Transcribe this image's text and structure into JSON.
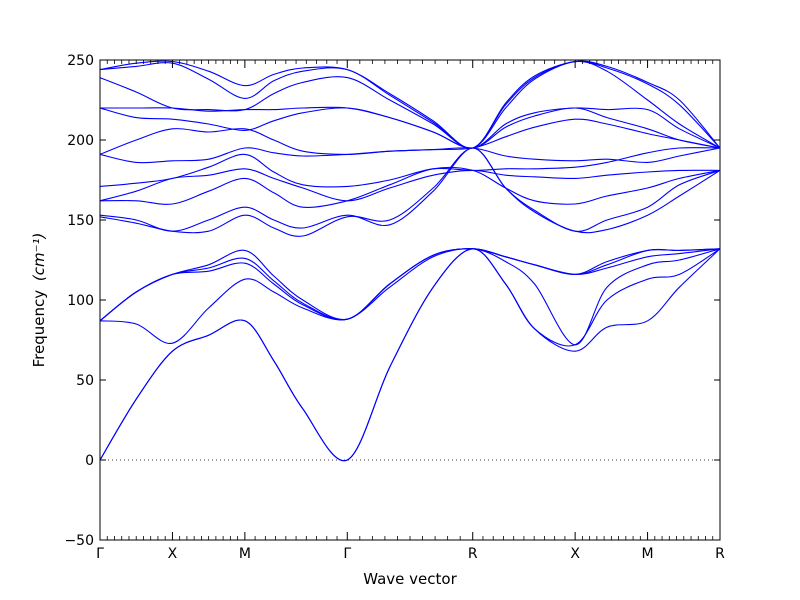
{
  "chart_data": {
    "type": "line",
    "title": "",
    "xlabel": "Wave vector",
    "ylabel": "Frequency",
    "ylabel_unit": "(cm⁻¹)",
    "ylim": [
      -50,
      250
    ],
    "yticks": [
      -50,
      0,
      50,
      100,
      150,
      200,
      250
    ],
    "xticks": [
      {
        "label": "Γ",
        "x": 0.0
      },
      {
        "label": "X",
        "x": 0.5
      },
      {
        "label": "M",
        "x": 1.0
      },
      {
        "label": "Γ",
        "x": 1.707
      },
      {
        "label": "R",
        "x": 2.573
      },
      {
        "label": "X",
        "x": 3.28
      },
      {
        "label": "M",
        "x": 3.78
      },
      {
        "label": "R",
        "x": 4.28
      }
    ],
    "xlim": [
      0,
      4.28
    ],
    "line_color": "#0000ff",
    "zero_line": {
      "y": 0,
      "style": "dotted"
    },
    "grid": false,
    "series": [
      {
        "x": [
          0,
          0.25,
          0.5,
          0.75,
          1.0,
          1.2,
          1.4,
          1.707,
          2.0,
          2.3,
          2.573,
          2.8,
          3.0,
          3.28,
          3.5,
          3.78,
          4.0,
          4.28
        ],
        "values": [
          0,
          38,
          68,
          78,
          87,
          62,
          32,
          0,
          58,
          108,
          132,
          110,
          82,
          68,
          83,
          87,
          108,
          132
        ]
      },
      {
        "x": [
          0,
          0.25,
          0.5,
          0.75,
          1.0,
          1.2,
          1.4,
          1.707,
          2.0,
          2.3,
          2.573,
          2.8,
          3.0,
          3.28,
          3.5,
          3.78,
          4.0,
          4.28
        ],
        "values": [
          0,
          38,
          68,
          78,
          87,
          62,
          32,
          0,
          58,
          108,
          132,
          110,
          82,
          72,
          100,
          113,
          116,
          132
        ]
      },
      {
        "x": [
          0,
          0.25,
          0.5,
          0.75,
          1.0,
          1.2,
          1.4,
          1.707,
          2.0,
          2.3,
          2.573,
          2.8,
          3.0,
          3.28,
          3.5,
          3.78,
          4.0,
          4.28
        ],
        "values": [
          87,
          85,
          73,
          95,
          113,
          105,
          95,
          88,
          108,
          127,
          132,
          124,
          110,
          72,
          108,
          122,
          125,
          132
        ]
      },
      {
        "x": [
          0,
          0.25,
          0.5,
          0.75,
          1.0,
          1.2,
          1.4,
          1.707,
          2.0,
          2.3,
          2.573,
          2.8,
          3.0,
          3.28,
          3.5,
          3.78,
          4.0,
          4.28
        ],
        "values": [
          87,
          105,
          116,
          118,
          123,
          110,
          97,
          88,
          110,
          128,
          132,
          127,
          122,
          116,
          120,
          127,
          129,
          132
        ]
      },
      {
        "x": [
          0,
          0.25,
          0.5,
          0.75,
          1.0,
          1.2,
          1.4,
          1.707,
          2.0,
          2.3,
          2.573,
          2.8,
          3.0,
          3.28,
          3.5,
          3.78,
          4.0,
          4.28
        ],
        "values": [
          87,
          105,
          116,
          120,
          126,
          112,
          98,
          88,
          110,
          128,
          132,
          127,
          122,
          116,
          122,
          131,
          131,
          132
        ]
      },
      {
        "x": [
          0,
          0.25,
          0.5,
          0.75,
          1.0,
          1.2,
          1.4,
          1.707,
          2.0,
          2.3,
          2.573,
          2.8,
          3.0,
          3.28,
          3.5,
          3.78,
          4.0,
          4.28
        ],
        "values": [
          87,
          105,
          116,
          122,
          131,
          115,
          100,
          88,
          110,
          128,
          132,
          127,
          122,
          116,
          124,
          131,
          131,
          132
        ]
      },
      {
        "x": [
          0,
          0.25,
          0.5,
          0.75,
          1.0,
          1.2,
          1.4,
          1.707,
          2.0,
          2.3,
          2.573,
          2.8,
          3.0,
          3.28,
          3.5,
          3.78,
          4.0,
          4.28
        ],
        "values": [
          152,
          148,
          143,
          143,
          153,
          145,
          140,
          152,
          150,
          170,
          195,
          170,
          155,
          143,
          144,
          153,
          165,
          181
        ]
      },
      {
        "x": [
          0,
          0.25,
          0.5,
          0.75,
          1.0,
          1.2,
          1.4,
          1.707,
          2.0,
          2.3,
          2.573,
          2.8,
          3.0,
          3.28,
          3.5,
          3.78,
          4.0,
          4.28
        ],
        "values": [
          153,
          150,
          143,
          150,
          158,
          150,
          145,
          153,
          147,
          168,
          195,
          170,
          156,
          143,
          150,
          158,
          172,
          181
        ]
      },
      {
        "x": [
          0,
          0.25,
          0.5,
          0.75,
          1.0,
          1.2,
          1.4,
          1.707,
          2.0,
          2.3,
          2.573,
          2.8,
          3.0,
          3.28,
          3.5,
          3.78,
          4.0,
          4.28
        ],
        "values": [
          162,
          162,
          160,
          168,
          176,
          167,
          158,
          162,
          172,
          182,
          181,
          170,
          162,
          160,
          165,
          170,
          176,
          181
        ]
      },
      {
        "x": [
          0,
          0.25,
          0.5,
          0.75,
          1.0,
          1.2,
          1.4,
          1.707,
          2.0,
          2.3,
          2.573,
          2.8,
          3.0,
          3.28,
          3.5,
          3.78,
          4.0,
          4.28
        ],
        "values": [
          162,
          168,
          176,
          178,
          182,
          176,
          170,
          162,
          170,
          178,
          181,
          178,
          177,
          176,
          178,
          180,
          181,
          181
        ]
      },
      {
        "x": [
          0,
          0.25,
          0.5,
          0.75,
          1.0,
          1.2,
          1.4,
          1.707,
          2.0,
          2.3,
          2.573,
          2.8,
          3.0,
          3.28,
          3.5,
          3.78,
          4.0,
          4.28
        ],
        "values": [
          171,
          173,
          176,
          183,
          191,
          180,
          172,
          171,
          175,
          182,
          181,
          182,
          182,
          183,
          186,
          192,
          195,
          195
        ]
      },
      {
        "x": [
          0,
          0.25,
          0.5,
          0.75,
          1.0,
          1.2,
          1.4,
          1.707,
          2.0,
          2.3,
          2.573,
          2.8,
          3.0,
          3.28,
          3.5,
          3.78,
          4.0,
          4.28
        ],
        "values": [
          191,
          186,
          187,
          188,
          195,
          192,
          190,
          191,
          193,
          194,
          195,
          190,
          188,
          187,
          188,
          186,
          190,
          195
        ]
      },
      {
        "x": [
          0,
          0.25,
          0.5,
          0.75,
          1.0,
          1.2,
          1.4,
          1.707,
          2.0,
          2.3,
          2.573,
          2.8,
          3.0,
          3.28,
          3.5,
          3.78,
          4.0,
          4.28
        ],
        "values": [
          191,
          200,
          207,
          205,
          207,
          200,
          193,
          191,
          193,
          194,
          195,
          202,
          208,
          213,
          210,
          204,
          200,
          195
        ]
      },
      {
        "x": [
          0,
          0.25,
          0.5,
          0.75,
          1.0,
          1.2,
          1.4,
          1.707,
          2.0,
          2.3,
          2.573,
          2.8,
          3.0,
          3.28,
          3.5,
          3.78,
          4.0,
          4.28
        ],
        "values": [
          220,
          214,
          213,
          210,
          206,
          212,
          217,
          220,
          214,
          205,
          195,
          208,
          215,
          220,
          214,
          207,
          200,
          195
        ]
      },
      {
        "x": [
          0,
          0.25,
          0.5,
          0.75,
          1.0,
          1.2,
          1.4,
          1.707,
          2.0,
          2.3,
          2.573,
          2.8,
          3.0,
          3.28,
          3.5,
          3.78,
          4.0,
          4.28
        ],
        "values": [
          220,
          220,
          220,
          218,
          219,
          219,
          220,
          220,
          214,
          205,
          195,
          210,
          217,
          220,
          219,
          219,
          207,
          195
        ]
      },
      {
        "x": [
          0,
          0.25,
          0.5,
          0.75,
          1.0,
          1.2,
          1.4,
          1.707,
          2.0,
          2.3,
          2.573,
          2.8,
          3.0,
          3.28,
          3.5,
          3.78,
          4.0,
          4.28
        ],
        "values": [
          239,
          230,
          220,
          219,
          219,
          229,
          236,
          239,
          225,
          210,
          195,
          220,
          238,
          249,
          243,
          225,
          210,
          195
        ]
      },
      {
        "x": [
          0,
          0.25,
          0.5,
          0.75,
          1.0,
          1.2,
          1.4,
          1.707,
          2.0,
          2.3,
          2.573,
          2.8,
          3.0,
          3.28,
          3.5,
          3.78,
          4.0,
          4.28
        ],
        "values": [
          244,
          246,
          248,
          238,
          226,
          237,
          243,
          244,
          228,
          211,
          195,
          222,
          239,
          249,
          245,
          235,
          222,
          195
        ]
      },
      {
        "x": [
          0,
          0.25,
          0.5,
          0.75,
          1.0,
          1.2,
          1.4,
          1.707,
          2.0,
          2.3,
          2.573,
          2.8,
          3.0,
          3.28,
          3.5,
          3.78,
          4.0,
          4.28
        ],
        "values": [
          244,
          248,
          249,
          243,
          234,
          241,
          245,
          244,
          229,
          212,
          195,
          223,
          240,
          249,
          246,
          236,
          225,
          195
        ]
      }
    ]
  }
}
